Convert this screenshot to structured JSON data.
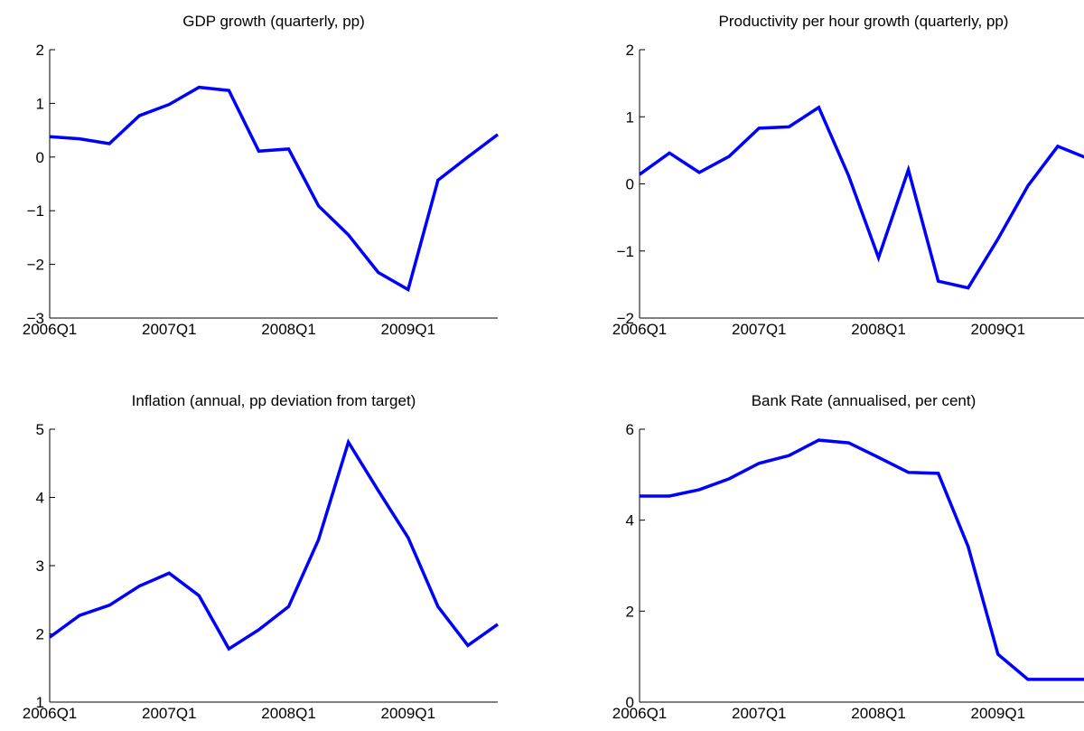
{
  "chart_data": [
    {
      "type": "line",
      "title": "GDP growth (quarterly, pp)",
      "categories": [
        "2006Q1",
        null,
        null,
        null,
        "2007Q1",
        null,
        null,
        null,
        "2008Q1",
        null,
        null,
        null,
        "2009Q1",
        null,
        null,
        null
      ],
      "series": [
        {
          "color": "#0000ff",
          "values": [
            0.38,
            0.34,
            0.25,
            0.77,
            0.98,
            1.3,
            1.24,
            0.11,
            0.15,
            -0.91,
            -1.45,
            -2.15,
            -2.47,
            -0.43,
            0,
            0.42
          ]
        }
      ],
      "ylim": [
        -3,
        2
      ],
      "yticks": [
        {
          "value": -3,
          "label": "−3"
        },
        {
          "value": -2,
          "label": "−2"
        },
        {
          "value": -1,
          "label": "−1"
        },
        0,
        1,
        2
      ]
    },
    {
      "type": "line",
      "title": "Productivity per hour growth (quarterly, pp)",
      "categories": [
        "2006Q1",
        null,
        null,
        null,
        "2007Q1",
        null,
        null,
        null,
        "2008Q1",
        null,
        null,
        null,
        "2009Q1",
        null,
        null,
        null
      ],
      "series": [
        {
          "color": "#0000ff",
          "values": [
            0.14,
            0.46,
            0.17,
            0.41,
            0.83,
            0.85,
            1.14,
            0.12,
            -1.1,
            0.21,
            -1.45,
            -1.55,
            -0.82,
            -0.03,
            0.56,
            0.38
          ]
        }
      ],
      "ylim": [
        -2,
        2
      ],
      "yticks": [
        {
          "value": -2,
          "label": "−2"
        },
        {
          "value": -1,
          "label": "−1"
        },
        0,
        1,
        2
      ]
    },
    {
      "type": "line",
      "title": "Inflation (annual, pp deviation from target)",
      "categories": [
        "2006Q1",
        null,
        null,
        null,
        "2007Q1",
        null,
        null,
        null,
        "2008Q1",
        null,
        null,
        null,
        "2009Q1",
        null,
        null,
        null
      ],
      "series": [
        {
          "color": "#0000ff",
          "values": [
            1.95,
            2.27,
            2.42,
            2.7,
            2.89,
            2.56,
            1.78,
            2.06,
            2.4,
            3.38,
            4.81,
            4.1,
            3.41,
            2.4,
            1.83,
            2.14
          ]
        }
      ],
      "ylim": [
        1,
        5
      ],
      "yticks": [
        1,
        2,
        3,
        4,
        5
      ]
    },
    {
      "type": "line",
      "title": "Bank Rate (annualised, per cent)",
      "categories": [
        "2006Q1",
        null,
        null,
        null,
        "2007Q1",
        null,
        null,
        null,
        "2008Q1",
        null,
        null,
        null,
        "2009Q1",
        null,
        null,
        null
      ],
      "series": [
        {
          "color": "#0000ff",
          "values": [
            4.53,
            4.53,
            4.67,
            4.91,
            5.25,
            5.42,
            5.76,
            5.7,
            5.38,
            5.05,
            5.03,
            3.42,
            1.05,
            0.5,
            0.5,
            0.5
          ]
        }
      ],
      "ylim": [
        0,
        6
      ],
      "yticks": [
        0,
        2,
        4,
        6
      ]
    }
  ]
}
